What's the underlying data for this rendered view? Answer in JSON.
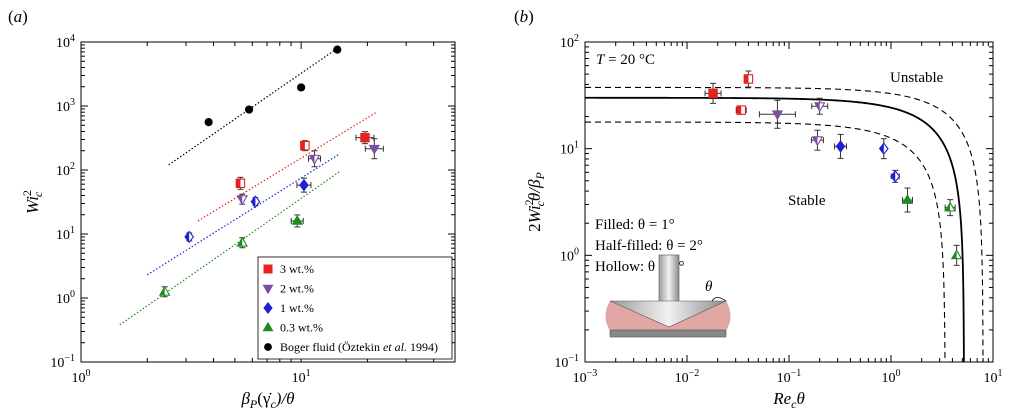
{
  "chart_data": [
    {
      "type": "scatter",
      "panel_label": "(a)",
      "xlabel": "βP(γ̇c)/θ",
      "ylabel": "Wi_c^2",
      "xscale": "log",
      "yscale": "log",
      "xlim": [
        1,
        50
      ],
      "ylim": [
        0.1,
        10000
      ],
      "xticks": [
        {
          "v": 1,
          "b": "10",
          "e": "0"
        },
        {
          "v": 10,
          "b": "10",
          "e": "1"
        }
      ],
      "yticks": [
        {
          "v": 0.1,
          "b": "10",
          "e": "−1"
        },
        {
          "v": 1,
          "b": "10",
          "e": "0"
        },
        {
          "v": 10,
          "b": "10",
          "e": "1"
        },
        {
          "v": 100,
          "b": "10",
          "e": "2"
        },
        {
          "v": 1000,
          "b": "10",
          "e": "3"
        },
        {
          "v": 10000,
          "b": "10",
          "e": "4"
        }
      ],
      "series": [
        {
          "name": "3 wt.%",
          "color": "#e8211f",
          "marker": "square",
          "points": [
            {
              "x": 5.3,
              "y": 62,
              "fill": "half"
            },
            {
              "x": 10.4,
              "y": 240,
              "fill": "half"
            },
            {
              "x": 19.5,
              "y": 320,
              "fill": "full"
            }
          ],
          "fit": {
            "x": [
              3.4,
              22
            ],
            "y": [
              16,
              800
            ]
          }
        },
        {
          "name": "2 wt.%",
          "color": "#7b4ea0",
          "marker": "triangle-down",
          "points": [
            {
              "x": 5.4,
              "y": 35,
              "fill": "half"
            },
            {
              "x": 11.5,
              "y": 150,
              "fill": "half"
            },
            {
              "x": 21.5,
              "y": 215,
              "fill": "full"
            }
          ]
        },
        {
          "name": "1 wt.%",
          "color": "#1c1fd6",
          "marker": "diamond",
          "points": [
            {
              "x": 3.1,
              "y": 9,
              "fill": "half"
            },
            {
              "x": 6.2,
              "y": 32,
              "fill": "half"
            },
            {
              "x": 10.3,
              "y": 58,
              "fill": "full"
            }
          ],
          "fit": {
            "x": [
              2.0,
              15
            ],
            "y": [
              2.3,
              180
            ]
          }
        },
        {
          "name": "0.3 wt.%",
          "color": "#1f8a1f",
          "marker": "triangle-up",
          "points": [
            {
              "x": 2.4,
              "y": 1.25,
              "fill": "half"
            },
            {
              "x": 5.4,
              "y": 7.3,
              "fill": "half"
            },
            {
              "x": 9.6,
              "y": 16,
              "fill": "full"
            }
          ],
          "fit": {
            "x": [
              1.5,
              15
            ],
            "y": [
              0.38,
              95
            ]
          }
        },
        {
          "name": "Boger fluid (Öztekin et al. 1994)",
          "color": "#000000",
          "marker": "circle",
          "points": [
            {
              "x": 3.8,
              "y": 560,
              "fill": "full"
            },
            {
              "x": 5.8,
              "y": 880,
              "fill": "full"
            },
            {
              "x": 10.0,
              "y": 1950,
              "fill": "full"
            },
            {
              "x": 14.6,
              "y": 7600,
              "fill": "full"
            }
          ],
          "fit": {
            "x": [
              2.5,
              15
            ],
            "y": [
              120,
              8500
            ]
          }
        }
      ],
      "legend": {
        "position": "bottom-right",
        "entries": [
          {
            "text": "3 wt.%",
            "color": "#e8211f",
            "marker": "square"
          },
          {
            "text": "2 wt.%",
            "color": "#7b4ea0",
            "marker": "triangle-down"
          },
          {
            "text": "1 wt.%",
            "color": "#1c1fd6",
            "marker": "diamond"
          },
          {
            "text": "0.3 wt.%",
            "color": "#1f8a1f",
            "marker": "triangle-up"
          },
          {
            "text": "Boger fluid (Öztekin et al. 1994)",
            "color": "#000000",
            "marker": "circle"
          }
        ]
      }
    },
    {
      "type": "scatter",
      "panel_label": "(b)",
      "xlabel": "Re_c θ",
      "ylabel": "2Wi_c^2θ/βP",
      "xscale": "log",
      "yscale": "log",
      "xlim": [
        0.001,
        10
      ],
      "ylim": [
        0.1,
        100
      ],
      "xticks": [
        {
          "v": 0.001,
          "b": "10",
          "e": "−3"
        },
        {
          "v": 0.01,
          "b": "10",
          "e": "−2"
        },
        {
          "v": 0.1,
          "b": "10",
          "e": "−1"
        },
        {
          "v": 1,
          "b": "10",
          "e": "0"
        },
        {
          "v": 10,
          "b": "10",
          "e": "1"
        }
      ],
      "yticks": [
        {
          "v": 0.1,
          "b": "10",
          "e": "−1"
        },
        {
          "v": 1,
          "b": "10",
          "e": "0"
        },
        {
          "v": 10,
          "b": "10",
          "e": "1"
        },
        {
          "v": 100,
          "b": "10",
          "e": "2"
        }
      ],
      "curve": {
        "A": 30,
        "xc_center": 5.2,
        "xc_lower": 3.4,
        "xc_upper": 8.0,
        "band_factor": 1.25
      },
      "points": [
        {
          "x": 0.018,
          "y": 33,
          "color": "#e8211f",
          "marker": "square",
          "fill": "full"
        },
        {
          "x": 0.04,
          "y": 45,
          "color": "#e8211f",
          "marker": "square",
          "fill": "half"
        },
        {
          "x": 0.034,
          "y": 23,
          "color": "#e8211f",
          "marker": "square",
          "fill": "half"
        },
        {
          "x": 0.077,
          "y": 21,
          "color": "#7b4ea0",
          "marker": "triangle-down",
          "fill": "full"
        },
        {
          "x": 0.2,
          "y": 25,
          "color": "#7b4ea0",
          "marker": "triangle-down",
          "fill": "half"
        },
        {
          "x": 0.19,
          "y": 12,
          "color": "#7b4ea0",
          "marker": "triangle-down",
          "fill": "half"
        },
        {
          "x": 0.32,
          "y": 10.5,
          "color": "#1c1fd6",
          "marker": "diamond",
          "fill": "full"
        },
        {
          "x": 0.85,
          "y": 10,
          "color": "#1c1fd6",
          "marker": "diamond",
          "fill": "half"
        },
        {
          "x": 1.1,
          "y": 5.5,
          "color": "#1c1fd6",
          "marker": "diamond",
          "fill": "half"
        },
        {
          "x": 1.45,
          "y": 3.3,
          "color": "#1f8a1f",
          "marker": "triangle-up",
          "fill": "full"
        },
        {
          "x": 3.8,
          "y": 2.8,
          "color": "#1f8a1f",
          "marker": "triangle-up",
          "fill": "half"
        },
        {
          "x": 4.4,
          "y": 1.0,
          "color": "#1f8a1f",
          "marker": "triangle-up",
          "fill": "half"
        }
      ],
      "annotations": {
        "temperature": "T = 20 °C",
        "unstable": "Unstable",
        "stable": "Stable",
        "filled": "Filled: θ = 1°",
        "half_filled": "Half-filled: θ = 2°",
        "hollow": "Hollow: θ = 5°",
        "theta": "θ"
      }
    }
  ]
}
